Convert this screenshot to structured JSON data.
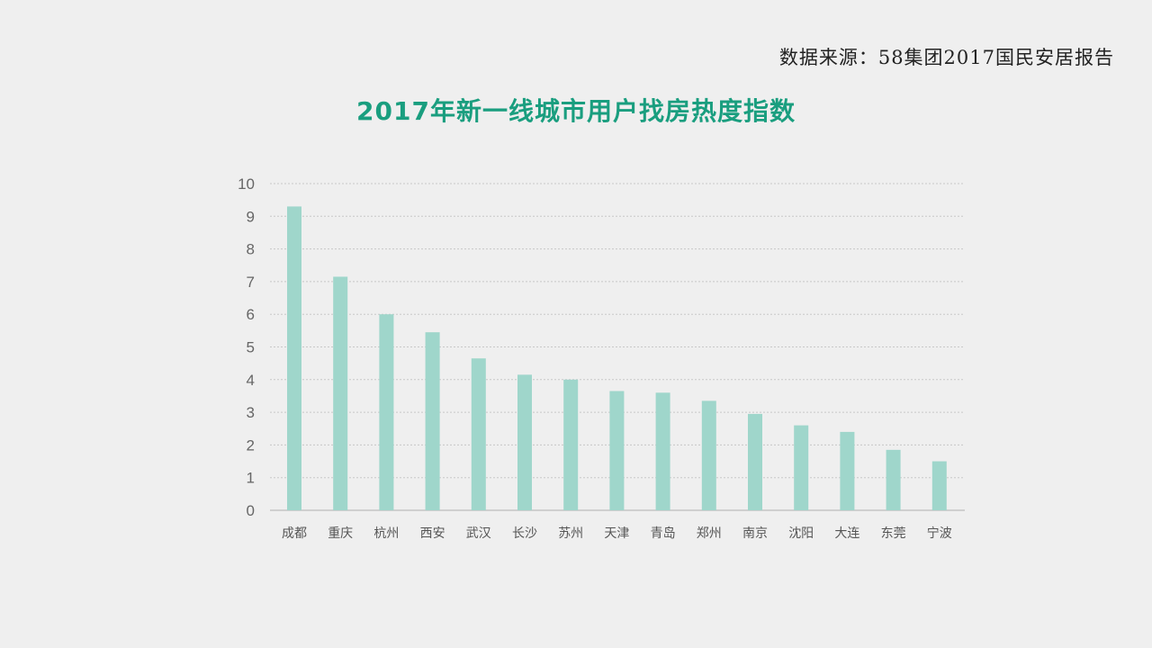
{
  "source_text": "数据来源：58集团2017国民安居报告",
  "chart_data": {
    "type": "bar",
    "title": "2017年新一线城市用户找房热度指数",
    "categories": [
      "成都",
      "重庆",
      "杭州",
      "西安",
      "武汉",
      "长沙",
      "苏州",
      "天津",
      "青岛",
      "郑州",
      "南京",
      "沈阳",
      "大连",
      "东莞",
      "宁波"
    ],
    "values": [
      9.3,
      7.15,
      6.0,
      5.45,
      4.65,
      4.15,
      4.0,
      3.65,
      3.6,
      3.35,
      2.95,
      2.6,
      2.4,
      1.85,
      1.5
    ],
    "xlabel": "",
    "ylabel": "",
    "ylim": [
      0,
      10
    ],
    "yticks": [
      "0",
      "1",
      "2",
      "3",
      "4",
      "5",
      "6",
      "7",
      "8",
      "9",
      "10"
    ],
    "grid": true,
    "bar_color": "#9fd6cb",
    "grid_color": "#c8c8c8",
    "axis_color": "#cfcfcf"
  }
}
